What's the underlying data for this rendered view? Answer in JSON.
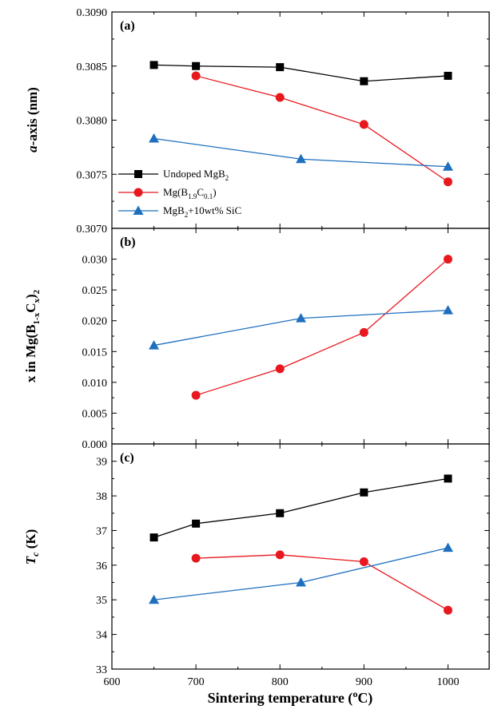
{
  "colors": {
    "undoped": "#000000",
    "carbon": "#e8181f",
    "sic": "#1f6fbf"
  },
  "xaxis": {
    "label": "Sintering temperature (",
    "label_sup": "o",
    "label_end": "C)",
    "ticks": [
      "600",
      "700",
      "800",
      "900",
      "1000"
    ]
  },
  "chart_data": [
    {
      "type": "line",
      "panel": "(a)",
      "ylabel_italic": "a",
      "ylabel_rest": "-axis (nm)",
      "xlim": [
        600,
        1050
      ],
      "ylim": [
        0.307,
        0.309
      ],
      "yticks": [
        "0.3070",
        "0.3075",
        "0.3080",
        "0.3085",
        "0.3090"
      ],
      "legend": [
        "Undoped MgB2",
        "Mg(B1.9C0.1)",
        "MgB2+10wt% SiC"
      ],
      "legend_position": "bottom-left",
      "series": [
        {
          "name": "Undoped MgB2",
          "marker": "square",
          "x": [
            650,
            700,
            800,
            900,
            1000
          ],
          "y": [
            0.30851,
            0.3085,
            0.30849,
            0.30836,
            0.30841
          ]
        },
        {
          "name": "Mg(B1.9C0.1)",
          "marker": "circle",
          "x": [
            700,
            800,
            900,
            1000
          ],
          "y": [
            0.30841,
            0.30821,
            0.30796,
            0.30743
          ]
        },
        {
          "name": "MgB2+10wt% SiC",
          "marker": "triangle",
          "x": [
            650,
            825,
            1000
          ],
          "y": [
            0.30783,
            0.30764,
            0.30757
          ]
        }
      ]
    },
    {
      "type": "line",
      "panel": "(b)",
      "ylabel": "x in Mg(B1-xCx)2",
      "xlim": [
        600,
        1050
      ],
      "ylim": [
        0,
        0.035
      ],
      "yticks": [
        "0.000",
        "0.005",
        "0.010",
        "0.015",
        "0.020",
        "0.025",
        "0.030"
      ],
      "series": [
        {
          "name": "Mg(B1.9C0.1)",
          "marker": "circle",
          "x": [
            700,
            800,
            900,
            1000
          ],
          "y": [
            0.0079,
            0.0122,
            0.0181,
            0.03
          ]
        },
        {
          "name": "MgB2+10wt% SiC",
          "marker": "triangle",
          "x": [
            650,
            825,
            1000
          ],
          "y": [
            0.016,
            0.0204,
            0.0217
          ]
        }
      ]
    },
    {
      "type": "line",
      "panel": "(c)",
      "ylabel_italic": "T",
      "ylabel_sub": "c",
      "ylabel_rest": " (K)",
      "xlim": [
        600,
        1050
      ],
      "ylim": [
        33,
        39.5
      ],
      "yticks": [
        "33",
        "34",
        "35",
        "36",
        "37",
        "38",
        "39"
      ],
      "series": [
        {
          "name": "Undoped MgB2",
          "marker": "square",
          "x": [
            650,
            700,
            800,
            900,
            1000
          ],
          "y": [
            36.8,
            37.2,
            37.5,
            38.1,
            38.5
          ]
        },
        {
          "name": "Mg(B1.9C0.1)",
          "marker": "circle",
          "x": [
            700,
            800,
            900,
            1000
          ],
          "y": [
            36.2,
            36.3,
            36.1,
            34.7
          ]
        },
        {
          "name": "MgB2+10wt% SiC",
          "marker": "triangle",
          "x": [
            650,
            825,
            1000
          ],
          "y": [
            35.0,
            35.5,
            36.5
          ]
        }
      ]
    }
  ]
}
